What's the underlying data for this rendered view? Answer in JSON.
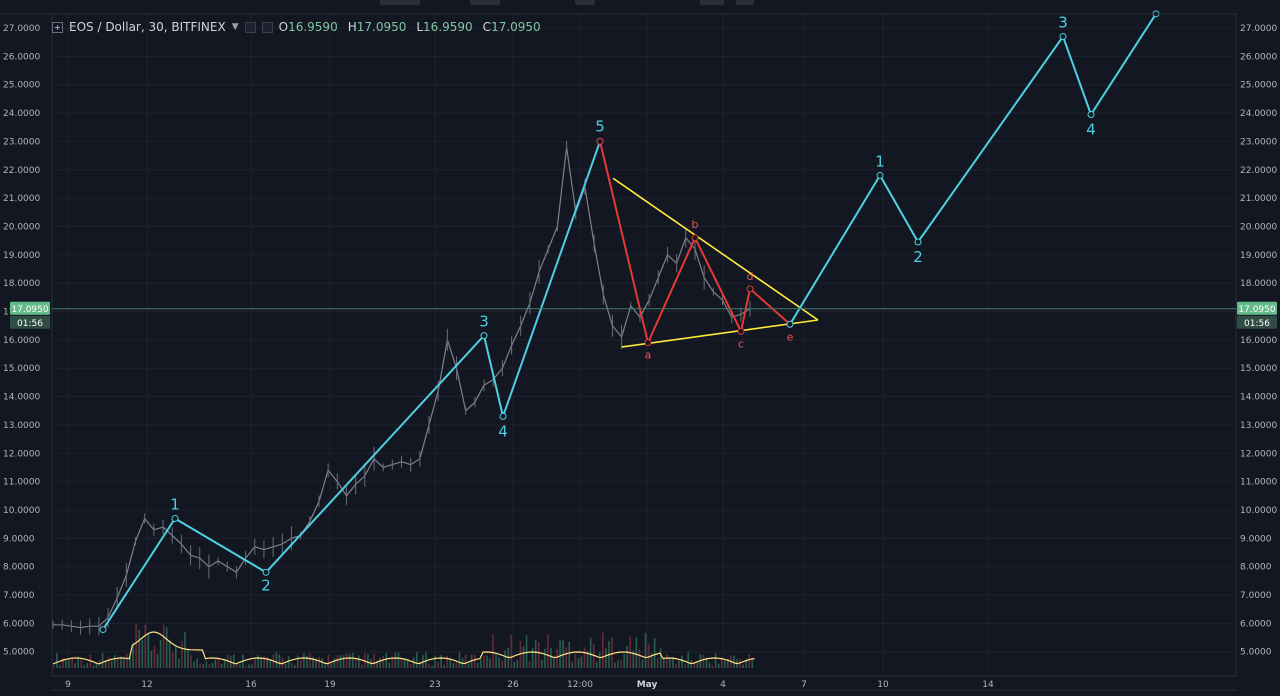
{
  "header": {
    "symbol": "EOS / Dollar, 30, BITFINEX",
    "open_label": "O",
    "open_value": "16.9590",
    "high_label": "H",
    "high_value": "17.0950",
    "low_label": "L",
    "low_value": "16.9590",
    "close_label": "C",
    "close_value": "17.0950"
  },
  "price_axis": {
    "ticks": [
      "27.0000",
      "26.0000",
      "25.0000",
      "24.0000",
      "23.0000",
      "22.0000",
      "21.0000",
      "20.0000",
      "19.0000",
      "18.0000",
      "17.0000",
      "16.0000",
      "15.0000",
      "14.0000",
      "13.0000",
      "12.0000",
      "11.0000",
      "10.0000",
      "9.0000",
      "8.0000",
      "7.0000",
      "6.0000",
      "5.0000"
    ],
    "current_price": "17.0950",
    "countdown": "01:56"
  },
  "time_axis": {
    "labels": [
      "9",
      "12",
      "16",
      "19",
      "23",
      "26",
      "12:00",
      "May",
      "4",
      "7",
      "10",
      "14"
    ]
  },
  "chart_data": {
    "type": "line",
    "ylim": [
      4.4,
      27.6
    ],
    "current_price": 17.095,
    "impulse_wave": [
      {
        "x": "Apr 10",
        "y": 5.78,
        "label": ""
      },
      {
        "x": "Apr 13",
        "y": 9.7,
        "label": "1"
      },
      {
        "x": "Apr 16",
        "y": 7.8,
        "label": "2"
      },
      {
        "x": "Apr 24",
        "y": 16.15,
        "label": "3"
      },
      {
        "x": "Apr 25",
        "y": 13.3,
        "label": "4"
      },
      {
        "x": "Apr 29",
        "y": 23.0,
        "label": "5"
      }
    ],
    "correction_wave": [
      {
        "x": "Apr 29",
        "y": 23.0,
        "label": ""
      },
      {
        "x": "May 1",
        "y": 15.9,
        "label": "a"
      },
      {
        "x": "May 3",
        "y": 19.6,
        "label": "b"
      },
      {
        "x": "May 5",
        "y": 16.3,
        "label": "c"
      },
      {
        "x": "May 5",
        "y": 17.8,
        "label": "d"
      },
      {
        "x": "May 6",
        "y": 16.55,
        "label": "e"
      }
    ],
    "projection_wave": [
      {
        "x": "May 6",
        "y": 16.55,
        "label": ""
      },
      {
        "x": "May 10",
        "y": 21.8,
        "label": "1"
      },
      {
        "x": "May 11",
        "y": 19.45,
        "label": "2"
      },
      {
        "x": "May 17",
        "y": 26.7,
        "label": "3"
      },
      {
        "x": "May 18",
        "y": 23.95,
        "label": "4"
      },
      {
        "x": "May 20",
        "y": 27.5,
        "label": ""
      }
    ],
    "triangle_upper": [
      {
        "y": 21.7
      },
      {
        "y": 16.7
      }
    ],
    "triangle_lower": [
      {
        "y": 15.75
      },
      {
        "y": 16.7
      }
    ],
    "price_path": [
      5.95,
      5.95,
      5.9,
      5.85,
      5.9,
      5.9,
      6.2,
      6.9,
      7.7,
      8.9,
      9.7,
      9.3,
      9.4,
      9.1,
      8.8,
      8.4,
      8.3,
      8.0,
      8.2,
      8.0,
      7.8,
      8.3,
      8.7,
      8.6,
      8.7,
      8.8,
      9.0,
      9.1,
      9.6,
      10.3,
      11.4,
      11.0,
      10.5,
      10.9,
      11.2,
      11.8,
      11.5,
      11.6,
      11.7,
      11.6,
      11.8,
      13.0,
      14.2,
      16.0,
      15.0,
      13.5,
      13.8,
      14.4,
      14.6,
      15.0,
      15.8,
      16.5,
      17.3,
      18.4,
      19.2,
      20.0,
      22.8,
      20.5,
      21.4,
      19.4,
      17.6,
      16.5,
      16.1,
      17.2,
      16.8,
      17.4,
      18.2,
      19.0,
      18.7,
      19.6,
      19.2,
      18.2,
      17.7,
      17.4,
      16.8,
      16.9,
      17.1
    ],
    "colors": {
      "background": "#131722",
      "impulse": "#4dd0e1",
      "correction": "#e53935",
      "triangle": "#ffeb3b",
      "label_cyan": "#4dd0e1",
      "label_red": "#ef5350",
      "volume_ma": "#ffe082",
      "current_price_badge": "#66bb8a"
    }
  }
}
